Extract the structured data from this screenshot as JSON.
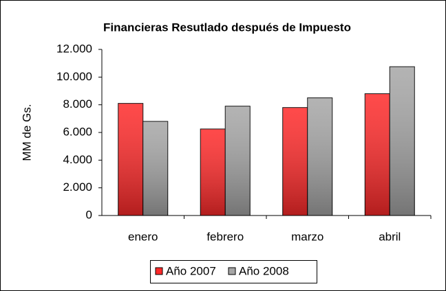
{
  "chart_data": {
    "type": "bar",
    "title": "Financieras Resutlado después de Impuesto",
    "y_label": "MM de Gs.",
    "categories": [
      "enero",
      "febrero",
      "marzo",
      "abril"
    ],
    "series": [
      {
        "name": "Año 2007",
        "color": "#ff2a2a",
        "values": [
          8100,
          6250,
          7800,
          8800
        ]
      },
      {
        "name": "Año 2008",
        "color": "#a6a6a6",
        "values": [
          6800,
          7900,
          8500,
          10750
        ]
      }
    ],
    "ylim": [
      0,
      12000
    ],
    "yticks": [
      0,
      {
        "value": 2000,
        "label": "2.000"
      },
      {
        "value": 4000,
        "label": "4.000"
      },
      {
        "value": 6000,
        "label": "6.000"
      },
      {
        "value": 8000,
        "label": "8.000"
      },
      {
        "value": 10000,
        "label": "10.000"
      },
      {
        "value": 12000,
        "label": "12.000"
      }
    ],
    "legend": "bottom"
  }
}
